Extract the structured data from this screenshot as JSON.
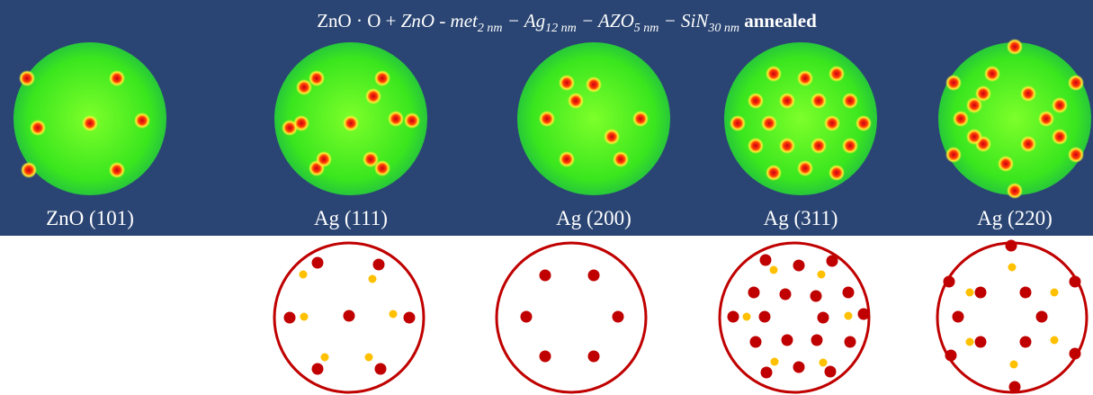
{
  "title": {
    "parts": [
      "ZnO · O + ",
      "ZnO - met",
      "2 nm",
      " − Ag",
      "12 nm",
      " − AZO",
      "5 nm",
      " − SiN",
      "30 nm",
      " annealed"
    ]
  },
  "panels": [
    {
      "label": "ZnO (101)"
    },
    {
      "label": "Ag (111)"
    },
    {
      "label": "Ag (200)"
    },
    {
      "label": "Ag (311)"
    },
    {
      "label": "Ag (220)"
    }
  ]
}
